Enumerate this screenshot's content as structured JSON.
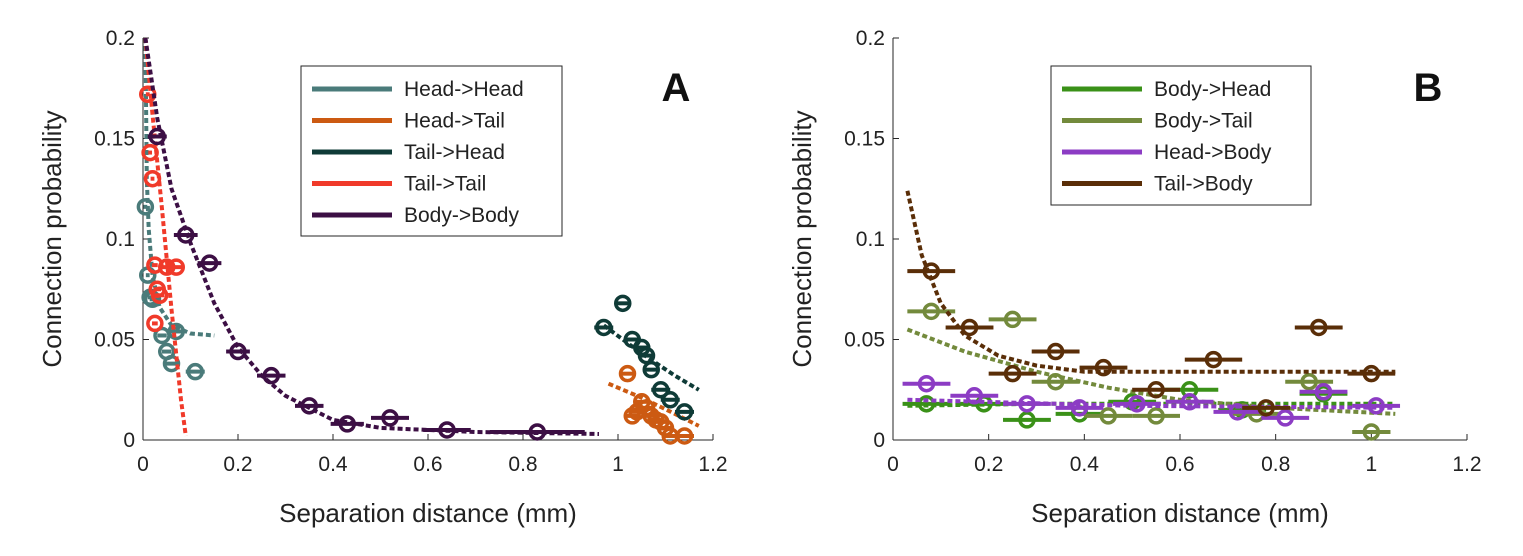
{
  "chart_data": [
    {
      "type": "scatter",
      "panel_label": "A",
      "xlabel": "Separation distance (mm)",
      "ylabel": "Connection probability",
      "xlim": [
        0,
        1.2
      ],
      "ylim": [
        0,
        0.2
      ],
      "xticks": [
        0,
        0.2,
        0.4,
        0.6,
        0.8,
        1,
        1.2
      ],
      "yticks": [
        0,
        0.05,
        0.1,
        0.15,
        0.2
      ],
      "xtick_labels": [
        "0",
        "0.2",
        "0.4",
        "0.6",
        "0.8",
        "1",
        "1.2"
      ],
      "ytick_labels": [
        "0",
        "0.05",
        "0.1",
        "0.15",
        "0.2"
      ],
      "legend_position": "top-right",
      "series": [
        {
          "name": "Head->Head",
          "color": "#4a7b7a",
          "points": [
            [
              0.005,
              0.116
            ],
            [
              0.01,
              0.082
            ],
            [
              0.015,
              0.071
            ],
            [
              0.02,
              0.07
            ],
            [
              0.04,
              0.052
            ],
            [
              0.05,
              0.044
            ],
            [
              0.06,
              0.038
            ],
            [
              0.07,
              0.054
            ],
            [
              0.11,
              0.034
            ]
          ],
          "xerr": [
            0.004,
            0.004,
            0.005,
            0.006,
            0.01,
            0.01,
            0.012,
            0.015,
            0.02
          ],
          "fit": [
            [
              0.005,
              0.2
            ],
            [
              0.008,
              0.13
            ],
            [
              0.012,
              0.105
            ],
            [
              0.02,
              0.082
            ],
            [
              0.035,
              0.066
            ],
            [
              0.06,
              0.057
            ],
            [
              0.1,
              0.053
            ],
            [
              0.15,
              0.052
            ]
          ]
        },
        {
          "name": "Head->Tail",
          "color": "#cc5a12",
          "points": [
            [
              1.02,
              0.033
            ],
            [
              1.03,
              0.012
            ],
            [
              1.04,
              0.014
            ],
            [
              1.05,
              0.019
            ],
            [
              1.06,
              0.016
            ],
            [
              1.07,
              0.012
            ],
            [
              1.08,
              0.01
            ],
            [
              1.09,
              0.009
            ],
            [
              1.1,
              0.006
            ],
            [
              1.11,
              0.002
            ],
            [
              1.14,
              0.002
            ]
          ],
          "xerr": [
            0.015,
            0.015,
            0.015,
            0.015,
            0.015,
            0.015,
            0.015,
            0.015,
            0.015,
            0.015,
            0.02
          ],
          "fit": [
            [
              0.98,
              0.028
            ],
            [
              1.05,
              0.021
            ],
            [
              1.12,
              0.013
            ],
            [
              1.17,
              0.007
            ]
          ]
        },
        {
          "name": "Tail->Head",
          "color": "#0f3b37",
          "points": [
            [
              0.97,
              0.056
            ],
            [
              1.01,
              0.068
            ],
            [
              1.03,
              0.05
            ],
            [
              1.05,
              0.046
            ],
            [
              1.06,
              0.042
            ],
            [
              1.07,
              0.035
            ],
            [
              1.09,
              0.025
            ],
            [
              1.11,
              0.02
            ],
            [
              1.14,
              0.014
            ]
          ],
          "xerr": [
            0.02,
            0.015,
            0.015,
            0.015,
            0.015,
            0.015,
            0.02,
            0.02,
            0.02
          ],
          "fit": [
            [
              0.97,
              0.057
            ],
            [
              1.05,
              0.043
            ],
            [
              1.12,
              0.032
            ],
            [
              1.17,
              0.025
            ]
          ]
        },
        {
          "name": "Tail->Tail",
          "color": "#f03a2a",
          "points": [
            [
              0.01,
              0.172
            ],
            [
              0.015,
              0.143
            ],
            [
              0.02,
              0.13
            ],
            [
              0.025,
              0.087
            ],
            [
              0.03,
              0.075
            ],
            [
              0.035,
              0.072
            ],
            [
              0.025,
              0.058
            ],
            [
              0.05,
              0.086
            ],
            [
              0.07,
              0.086
            ]
          ],
          "xerr": [
            0.004,
            0.004,
            0.004,
            0.006,
            0.008,
            0.01,
            0.006,
            0.012,
            0.015
          ],
          "fit": [
            [
              0.005,
              0.2
            ],
            [
              0.02,
              0.162
            ],
            [
              0.04,
              0.115
            ],
            [
              0.06,
              0.065
            ],
            [
              0.08,
              0.02
            ],
            [
              0.09,
              0.002
            ]
          ]
        },
        {
          "name": "Body->Body",
          "color": "#3c0f44",
          "points": [
            [
              0.03,
              0.151
            ],
            [
              0.09,
              0.102
            ],
            [
              0.14,
              0.088
            ],
            [
              0.2,
              0.044
            ],
            [
              0.27,
              0.032
            ],
            [
              0.35,
              0.017
            ],
            [
              0.43,
              0.008
            ],
            [
              0.52,
              0.011
            ],
            [
              0.64,
              0.005
            ],
            [
              0.83,
              0.004
            ]
          ],
          "xerr": [
            0.02,
            0.025,
            0.025,
            0.025,
            0.03,
            0.03,
            0.035,
            0.04,
            0.05,
            0.1
          ],
          "fit": [
            [
              0.005,
              0.2
            ],
            [
              0.03,
              0.16
            ],
            [
              0.06,
              0.125
            ],
            [
              0.1,
              0.098
            ],
            [
              0.15,
              0.068
            ],
            [
              0.2,
              0.046
            ],
            [
              0.25,
              0.032
            ],
            [
              0.3,
              0.022
            ],
            [
              0.4,
              0.01
            ],
            [
              0.5,
              0.006
            ],
            [
              0.7,
              0.004
            ],
            [
              0.96,
              0.003
            ]
          ]
        }
      ]
    },
    {
      "type": "scatter",
      "panel_label": "B",
      "xlabel": "Separation distance (mm)",
      "ylabel": "Connection probability",
      "xlim": [
        0,
        1.2
      ],
      "ylim": [
        0,
        0.2
      ],
      "xticks": [
        0,
        0.2,
        0.4,
        0.6,
        0.8,
        1,
        1.2
      ],
      "yticks": [
        0,
        0.05,
        0.1,
        0.15,
        0.2
      ],
      "xtick_labels": [
        "0",
        "0.2",
        "0.4",
        "0.6",
        "0.8",
        "1",
        "1.2"
      ],
      "ytick_labels": [
        "0",
        "0.05",
        "0.1",
        "0.15",
        "0.2"
      ],
      "legend_position": "top-right",
      "series": [
        {
          "name": "Body->Head",
          "color": "#3a9118",
          "points": [
            [
              0.07,
              0.018
            ],
            [
              0.19,
              0.018
            ],
            [
              0.28,
              0.01
            ],
            [
              0.39,
              0.013
            ],
            [
              0.5,
              0.019
            ],
            [
              0.62,
              0.025
            ],
            [
              0.73,
              0.015
            ],
            [
              0.9,
              0.023
            ]
          ],
          "xerr": [
            0.05,
            0.05,
            0.05,
            0.05,
            0.05,
            0.06,
            0.05,
            0.05
          ],
          "fit": [
            [
              0.03,
              0.017
            ],
            [
              0.3,
              0.018
            ],
            [
              0.6,
              0.018
            ],
            [
              1.05,
              0.018
            ]
          ]
        },
        {
          "name": "Body->Tail",
          "color": "#738a3c",
          "points": [
            [
              0.08,
              0.064
            ],
            [
              0.25,
              0.06
            ],
            [
              0.34,
              0.029
            ],
            [
              0.45,
              0.012
            ],
            [
              0.55,
              0.012
            ],
            [
              0.76,
              0.013
            ],
            [
              0.87,
              0.029
            ],
            [
              1.0,
              0.004
            ]
          ],
          "xerr": [
            0.05,
            0.05,
            0.05,
            0.05,
            0.05,
            0.05,
            0.05,
            0.04
          ],
          "fit": [
            [
              0.03,
              0.055
            ],
            [
              0.15,
              0.044
            ],
            [
              0.3,
              0.034
            ],
            [
              0.45,
              0.026
            ],
            [
              0.6,
              0.02
            ],
            [
              0.8,
              0.016
            ],
            [
              1.05,
              0.013
            ]
          ]
        },
        {
          "name": "Head->Body",
          "color": "#8c3cc4",
          "points": [
            [
              0.07,
              0.028
            ],
            [
              0.17,
              0.022
            ],
            [
              0.28,
              0.018
            ],
            [
              0.39,
              0.016
            ],
            [
              0.51,
              0.018
            ],
            [
              0.62,
              0.019
            ],
            [
              0.72,
              0.014
            ],
            [
              0.82,
              0.011
            ],
            [
              0.9,
              0.024
            ],
            [
              1.01,
              0.017
            ]
          ],
          "xerr": [
            0.05,
            0.05,
            0.05,
            0.05,
            0.05,
            0.05,
            0.05,
            0.05,
            0.05,
            0.05
          ],
          "fit": [
            [
              0.03,
              0.02
            ],
            [
              0.5,
              0.017
            ],
            [
              1.05,
              0.016
            ]
          ]
        },
        {
          "name": "Tail->Body",
          "color": "#5a2e08",
          "points": [
            [
              0.08,
              0.084
            ],
            [
              0.16,
              0.056
            ],
            [
              0.25,
              0.033
            ],
            [
              0.34,
              0.044
            ],
            [
              0.44,
              0.036
            ],
            [
              0.55,
              0.025
            ],
            [
              0.67,
              0.04
            ],
            [
              0.78,
              0.016
            ],
            [
              0.89,
              0.056
            ],
            [
              1.0,
              0.033
            ]
          ],
          "xerr": [
            0.05,
            0.05,
            0.05,
            0.05,
            0.05,
            0.05,
            0.06,
            0.05,
            0.05,
            0.05
          ],
          "fit": [
            [
              0.03,
              0.124
            ],
            [
              0.06,
              0.092
            ],
            [
              0.1,
              0.068
            ],
            [
              0.15,
              0.052
            ],
            [
              0.22,
              0.042
            ],
            [
              0.3,
              0.037
            ],
            [
              0.4,
              0.034
            ],
            [
              0.6,
              0.034
            ],
            [
              1.05,
              0.034
            ]
          ]
        }
      ]
    }
  ]
}
